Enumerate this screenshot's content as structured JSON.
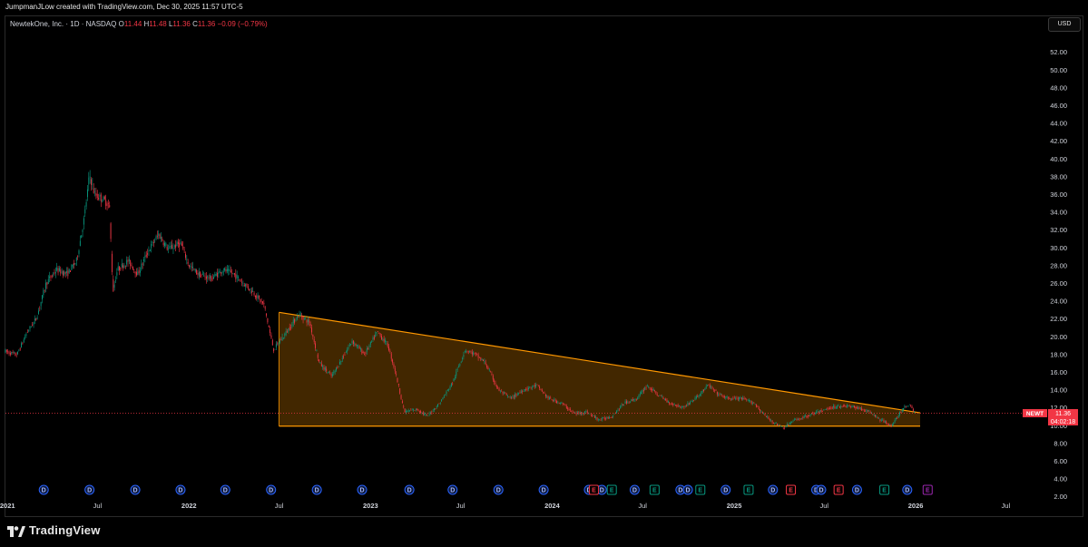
{
  "header": {
    "creator_text": "JumpmanJLow created with TradingView.com, Dec 30, 2025 11:57 UTC-5"
  },
  "legend": {
    "symbol_text": "NewtekOne, Inc. · 1D · NASDAQ",
    "o_label": "O",
    "o_value": "11.44",
    "h_label": "H",
    "h_value": "11.48",
    "l_label": "L",
    "l_value": "11.36",
    "c_label": "C",
    "c_value": "11.36",
    "change": "−0.09 (−0.79%)"
  },
  "currency_button": "USD",
  "price_tag": {
    "ticker": "NEWT",
    "price": "11.36",
    "countdown": "04:02:18"
  },
  "brand": {
    "name": "TradingView"
  },
  "colors": {
    "up": "#089981",
    "down": "#f23645",
    "triangle_line": "#ff9800",
    "triangle_fill": "#ff9800",
    "dividend_badge": "#2962ff",
    "earnings_green": "#089981",
    "earnings_red": "#f23645",
    "earnings_upcoming": "#9c27b0"
  },
  "chart_data": {
    "type": "candlestick",
    "symbol": "NEWT",
    "y_axis": {
      "min": 0,
      "max": 54,
      "ticks": [
        "2.00",
        "4.00",
        "6.00",
        "8.00",
        "10.00",
        "12.00",
        "14.00",
        "16.00",
        "18.00",
        "20.00",
        "22.00",
        "24.00",
        "26.00",
        "28.00",
        "30.00",
        "32.00",
        "34.00",
        "36.00",
        "38.00",
        "40.00",
        "42.00",
        "44.00",
        "46.00",
        "48.00",
        "50.00",
        "52.00"
      ]
    },
    "x_axis": {
      "labels": [
        {
          "text": "2021",
          "date": "2021-01-01"
        },
        {
          "text": "Jul",
          "date": "2021-07-01"
        },
        {
          "text": "2022",
          "date": "2022-01-01"
        },
        {
          "text": "Jul",
          "date": "2022-07-01"
        },
        {
          "text": "2023",
          "date": "2023-01-01"
        },
        {
          "text": "Jul",
          "date": "2023-07-01"
        },
        {
          "text": "2024",
          "date": "2024-01-01"
        },
        {
          "text": "Jul",
          "date": "2024-07-01"
        },
        {
          "text": "2025",
          "date": "2025-01-01"
        },
        {
          "text": "Jul",
          "date": "2025-07-01"
        },
        {
          "text": "2026",
          "date": "2026-01-01"
        },
        {
          "text": "Jul",
          "date": "2026-07-01"
        }
      ],
      "start": "2020-12-28",
      "end": "2026-09-15"
    },
    "last_close": 11.36,
    "price_path": [
      [
        "2020-12-28",
        18.3
      ],
      [
        "2021-01-20",
        17.9
      ],
      [
        "2021-02-10",
        20.5
      ],
      [
        "2021-02-28",
        22.0
      ],
      [
        "2021-03-20",
        26.0
      ],
      [
        "2021-04-10",
        27.5
      ],
      [
        "2021-05-01",
        27.0
      ],
      [
        "2021-05-20",
        28.5
      ],
      [
        "2021-06-05",
        33.5
      ],
      [
        "2021-06-15",
        38.2
      ],
      [
        "2021-06-25",
        36.0
      ],
      [
        "2021-07-10",
        35.5
      ],
      [
        "2021-07-25",
        34.8
      ],
      [
        "2021-08-01",
        25.0
      ],
      [
        "2021-08-10",
        27.5
      ],
      [
        "2021-09-01",
        28.5
      ],
      [
        "2021-09-20",
        27.0
      ],
      [
        "2021-10-10",
        29.5
      ],
      [
        "2021-11-01",
        31.5
      ],
      [
        "2021-11-20",
        29.8
      ],
      [
        "2021-12-15",
        30.5
      ],
      [
        "2022-01-01",
        28.0
      ],
      [
        "2022-01-20",
        27.0
      ],
      [
        "2022-02-15",
        26.5
      ],
      [
        "2022-03-10",
        27.5
      ],
      [
        "2022-04-01",
        27.0
      ],
      [
        "2022-04-20",
        26.0
      ],
      [
        "2022-05-10",
        25.0
      ],
      [
        "2022-06-01",
        23.5
      ],
      [
        "2022-06-20",
        18.5
      ],
      [
        "2022-07-10",
        20.0
      ],
      [
        "2022-08-10",
        22.5
      ],
      [
        "2022-09-01",
        21.5
      ],
      [
        "2022-09-20",
        17.0
      ],
      [
        "2022-10-15",
        15.5
      ],
      [
        "2022-11-05",
        17.5
      ],
      [
        "2022-11-25",
        19.5
      ],
      [
        "2022-12-20",
        18.0
      ],
      [
        "2023-01-15",
        20.5
      ],
      [
        "2023-02-05",
        19.0
      ],
      [
        "2023-02-20",
        16.0
      ],
      [
        "2023-03-10",
        11.5
      ],
      [
        "2023-04-05",
        11.8
      ],
      [
        "2023-04-25",
        11.0
      ],
      [
        "2023-05-20",
        12.5
      ],
      [
        "2023-06-15",
        14.8
      ],
      [
        "2023-07-10",
        18.5
      ],
      [
        "2023-07-30",
        18.0
      ],
      [
        "2023-08-20",
        17.0
      ],
      [
        "2023-09-15",
        14.0
      ],
      [
        "2023-10-10",
        13.0
      ],
      [
        "2023-11-05",
        14.0
      ],
      [
        "2023-12-01",
        14.5
      ],
      [
        "2023-12-25",
        13.0
      ],
      [
        "2024-01-20",
        12.5
      ],
      [
        "2024-02-15",
        11.3
      ],
      [
        "2024-03-10",
        11.5
      ],
      [
        "2024-04-05",
        10.6
      ],
      [
        "2024-04-30",
        11.0
      ],
      [
        "2024-05-25",
        12.5
      ],
      [
        "2024-06-20",
        13.0
      ],
      [
        "2024-07-10",
        14.5
      ],
      [
        "2024-07-30",
        13.5
      ],
      [
        "2024-08-25",
        12.5
      ],
      [
        "2024-09-20",
        12.0
      ],
      [
        "2024-10-15",
        13.0
      ],
      [
        "2024-11-10",
        14.5
      ],
      [
        "2024-11-30",
        13.5
      ],
      [
        "2024-12-20",
        13.0
      ],
      [
        "2025-01-15",
        13.0
      ],
      [
        "2025-02-10",
        12.5
      ],
      [
        "2025-03-05",
        11.0
      ],
      [
        "2025-03-25",
        10.2
      ],
      [
        "2025-04-10",
        9.7
      ],
      [
        "2025-04-30",
        10.5
      ],
      [
        "2025-05-25",
        11.0
      ],
      [
        "2025-06-20",
        11.5
      ],
      [
        "2025-07-15",
        12.0
      ],
      [
        "2025-08-10",
        12.2
      ],
      [
        "2025-09-05",
        12.0
      ],
      [
        "2025-09-30",
        11.5
      ],
      [
        "2025-10-25",
        10.5
      ],
      [
        "2025-11-15",
        10.0
      ],
      [
        "2025-12-05",
        11.8
      ],
      [
        "2025-12-20",
        12.4
      ],
      [
        "2025-12-30",
        11.36
      ]
    ],
    "drawings": {
      "descending_triangle": {
        "upper_trendline": [
          [
            "2022-07-01",
            22.7
          ],
          [
            "2025-12-30",
            11.4
          ]
        ],
        "lower_support": [
          [
            "2022-07-01",
            9.9
          ],
          [
            "2025-12-30",
            9.9
          ]
        ]
      }
    },
    "events": {
      "dividends": [
        "2021-03-15",
        "2021-06-15",
        "2021-09-15",
        "2021-12-15",
        "2022-03-15",
        "2022-06-15",
        "2022-09-15",
        "2022-12-15",
        "2023-03-20",
        "2023-06-15",
        "2023-09-15",
        "2023-12-15",
        "2024-03-15",
        "2024-04-10",
        "2024-06-15",
        "2024-09-15",
        "2024-09-30",
        "2024-12-15",
        "2025-03-20",
        "2025-06-15",
        "2025-06-25",
        "2025-09-05",
        "2025-12-15"
      ],
      "earnings": [
        {
          "date": "2024-03-25",
          "result": "miss"
        },
        {
          "date": "2024-04-30",
          "result": "beat"
        },
        {
          "date": "2024-07-25",
          "result": "beat"
        },
        {
          "date": "2024-10-25",
          "result": "beat"
        },
        {
          "date": "2025-01-30",
          "result": "beat"
        },
        {
          "date": "2025-04-25",
          "result": "miss"
        },
        {
          "date": "2025-07-30",
          "result": "miss"
        },
        {
          "date": "2025-10-30",
          "result": "beat"
        },
        {
          "date": "2026-01-25",
          "result": "upcoming"
        }
      ],
      "dividend_label": "D",
      "earnings_label": "E"
    }
  }
}
